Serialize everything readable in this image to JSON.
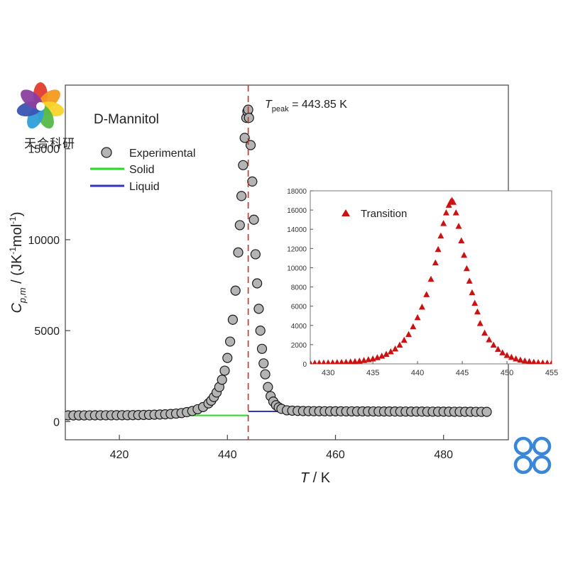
{
  "watermark": {
    "text": "天合科研"
  },
  "chart_data": [
    {
      "type": "scatter",
      "title": "D-Mannitol",
      "annotation": {
        "prefix": "T",
        "subscript": "peak",
        "suffix": " = 443.85 K",
        "x": 443.85
      },
      "xlabel": {
        "var": "T",
        "unit": " / K"
      },
      "ylabel": {
        "var": "C",
        "sub": "p,m",
        "unit_pre": " / (JK",
        "exp1": "-1",
        "mid": "mol",
        "exp2": "-1",
        "close": ")"
      },
      "xlim": [
        410,
        492
      ],
      "ylim": [
        -1000,
        18500
      ],
      "xticks": [
        420,
        440,
        460,
        480
      ],
      "yticks": [
        0,
        5000,
        10000,
        15000
      ],
      "grid": false,
      "legend_position": "top-left",
      "series": [
        {
          "name": "Experimental",
          "marker": "circle",
          "color": "#aaaaaa",
          "x": [
            410.5,
            411.5,
            412.5,
            413.5,
            414.5,
            415.5,
            416.5,
            417.5,
            418.5,
            419.5,
            420.5,
            421.5,
            422.5,
            423.5,
            424.5,
            425.5,
            426.5,
            427.5,
            428.5,
            429.5,
            430.5,
            431.5,
            432.5,
            433.5,
            434.5,
            435.5,
            436.5,
            437.0,
            437.5,
            438.0,
            438.5,
            439.0,
            439.5,
            440.0,
            440.5,
            441.0,
            441.5,
            442.0,
            442.3,
            442.6,
            442.9,
            443.2,
            443.5,
            443.7,
            443.85,
            444.0,
            444.3,
            444.6,
            444.9,
            445.2,
            445.5,
            445.8,
            446.1,
            446.4,
            446.7,
            447.0,
            447.5,
            448.0,
            448.5,
            449.0,
            449.5,
            450.0,
            451.0,
            452.0,
            453.0,
            454.0,
            455.0,
            456.0,
            457.0,
            458.0,
            459.0,
            460.0,
            461.0,
            462.0,
            463.0,
            464.0,
            465.0,
            466.0,
            467.0,
            468.0,
            469.0,
            470.0,
            471.0,
            472.0,
            473.0,
            474.0,
            475.0,
            476.0,
            477.0,
            478.0,
            479.0,
            480.0,
            481.0,
            482.0,
            483.0,
            484.0,
            485.0,
            486.0,
            487.0,
            488.0
          ],
          "values": [
            340,
            341,
            342,
            343,
            344,
            345,
            346,
            347,
            348,
            349,
            350,
            352,
            355,
            360,
            365,
            370,
            380,
            390,
            400,
            420,
            440,
            470,
            520,
            580,
            680,
            800,
            1000,
            1150,
            1350,
            1600,
            1900,
            2300,
            2800,
            3500,
            4400,
            5600,
            7200,
            9300,
            10800,
            12400,
            14100,
            15600,
            16700,
            17050,
            17150,
            16700,
            15200,
            13200,
            11100,
            9200,
            7600,
            6200,
            5000,
            4000,
            3200,
            2600,
            1900,
            1400,
            1100,
            900,
            780,
            700,
            620,
            600,
            590,
            580,
            575,
            572,
            570,
            568,
            566,
            565,
            564,
            563,
            562,
            561,
            560,
            559,
            558,
            557,
            556,
            555,
            554,
            553,
            552,
            551,
            550,
            549,
            548,
            547,
            546,
            545,
            544,
            543,
            542,
            541,
            540,
            539,
            538,
            537
          ]
        },
        {
          "name": "Solid",
          "type": "line",
          "color": "#22dd22",
          "x": [
            410,
            443.85
          ],
          "values": [
            340,
            340
          ]
        },
        {
          "name": "Liquid",
          "type": "line",
          "color": "#3333bb",
          "x": [
            443.85,
            488
          ],
          "values": [
            560,
            537
          ]
        }
      ]
    },
    {
      "type": "scatter",
      "legend_position": "top-left",
      "xlim": [
        428,
        455
      ],
      "ylim": [
        0,
        18000
      ],
      "xticks": [
        430,
        435,
        440,
        445,
        450,
        455
      ],
      "yticks": [
        0,
        2000,
        4000,
        6000,
        8000,
        10000,
        12000,
        14000,
        16000,
        18000
      ],
      "grid": false,
      "series": [
        {
          "name": "Transition",
          "marker": "triangle",
          "color": "#cc1111",
          "x": [
            428.0,
            428.5,
            429.0,
            429.5,
            430.0,
            430.5,
            431.0,
            431.5,
            432.0,
            432.5,
            433.0,
            433.5,
            434.0,
            434.5,
            435.0,
            435.5,
            436.0,
            436.5,
            437.0,
            437.5,
            438.0,
            438.5,
            439.0,
            439.5,
            440.0,
            440.5,
            441.0,
            441.5,
            442.0,
            442.3,
            442.6,
            442.9,
            443.2,
            443.5,
            443.7,
            443.85,
            444.0,
            444.3,
            444.6,
            444.9,
            445.2,
            445.5,
            445.8,
            446.1,
            446.4,
            446.7,
            447.0,
            447.5,
            448.0,
            448.5,
            449.0,
            449.5,
            450.0,
            450.5,
            451.0,
            451.5,
            452.0,
            452.5,
            453.0,
            453.5,
            454.0,
            454.5,
            455.0
          ],
          "values": [
            60,
            70,
            80,
            90,
            100,
            115,
            130,
            150,
            170,
            200,
            240,
            290,
            350,
            430,
            520,
            650,
            800,
            1000,
            1250,
            1550,
            1950,
            2450,
            3050,
            3850,
            4800,
            5900,
            7200,
            8800,
            10500,
            11900,
            13300,
            14600,
            15700,
            16500,
            16850,
            17000,
            16800,
            15700,
            14300,
            12800,
            11300,
            9900,
            8600,
            7400,
            6300,
            5400,
            4200,
            3200,
            2500,
            1950,
            1500,
            1150,
            880,
            680,
            520,
            400,
            300,
            230,
            170,
            130,
            100,
            80,
            60
          ]
        }
      ]
    }
  ]
}
